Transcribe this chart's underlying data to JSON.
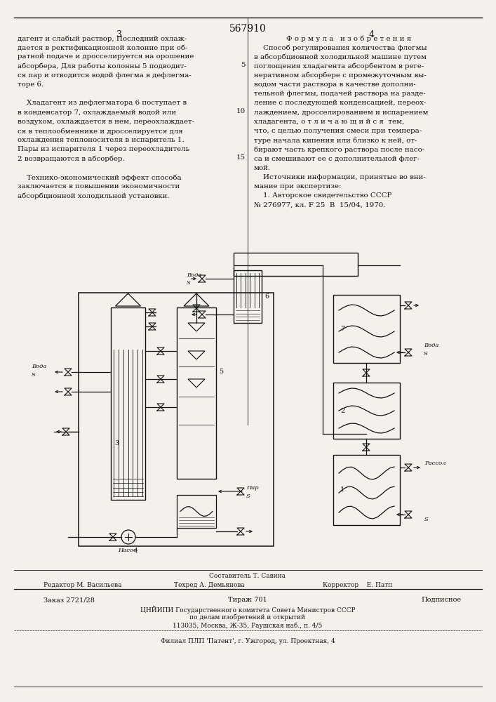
{
  "patent_number": "567910",
  "page_left": "3",
  "page_right": "4",
  "bg_color": "#f4f1ec",
  "text_color": "#111111",
  "left_text": [
    "дагент и слабый раствор, Последний охлаж-",
    "дается в ректификационной колонне при об-",
    "ратной подаче и дросселируется на орошение",
    "абсорбера, Для работы колонны 5 подводит-",
    "ся пар и отводится водой флегма в дефлегма-",
    "торе 6.",
    "",
    "    Хладагент из дефлегматора 6 поступает в",
    "в конденсатор 7, охлаждаемый водой или",
    "воздухом, охлаждается в нем, переохлаждает-",
    "ся в теплообменнике и дросселируется для",
    "охлаждения теплоносителя в испаритель 1.",
    "Пары из испарителя 1 через переохладитель",
    "2 возвращаются в абсорбер.",
    "",
    "    Технико-экономический эффект способа",
    "заключается в повышении экономичности",
    "абсорбционной холодильной установки."
  ],
  "right_header": "Ф о р м у л а   и з о б р е т е н и я",
  "right_text": [
    "    Способ регулирования количества флегмы",
    "в абсорбционной холодильной машине путем",
    "поглощения хладагента абсорбентом в реге-",
    "неративном абсорбере с промежуточным вы-",
    "водом части раствора в качестве дополни-",
    "тельной флегмы, подачей раствора на разде-",
    "ление с последующей конденсацией, переох-",
    "лаждением, дросселированием и испарением",
    "хладагента, о т л и ч а ю щ и й с я  тем,",
    "что, с целью получения смеси при темпера-",
    "туре начала кипения или близко к ней, от-",
    "бирают часть крепкого раствора после насо-",
    "са и смешивают ее с дополнительной флег-",
    "мой.",
    "    Источники информации, принятые во вни-",
    "мание при экспертизе:",
    "    1. Авторское свидетельство СССР",
    "№ 276977, кл. F 25  В  15/04, 1970."
  ],
  "footer_composer": "Составитель Т. Савина",
  "footer_editor": "Редактор М. Васильева",
  "footer_techred": "Техред А. Демьянова",
  "footer_corrector": "Корректор    Е. Патп",
  "footer_order": "Заказ 2721/28",
  "footer_print": "Тираж 701",
  "footer_subscription": "Подписное",
  "footer_org": "ЦНЙИПИ Государственного комитета Совета Министров СССР",
  "footer_dept": "по делам изобретений и открытий",
  "footer_address": "113035, Москва, Ж-35, Раушская наб., п. 4/5",
  "footer_branch": "Филиал ПЛП 'Патент', г. Ужгород, ул. Проектная, 4"
}
